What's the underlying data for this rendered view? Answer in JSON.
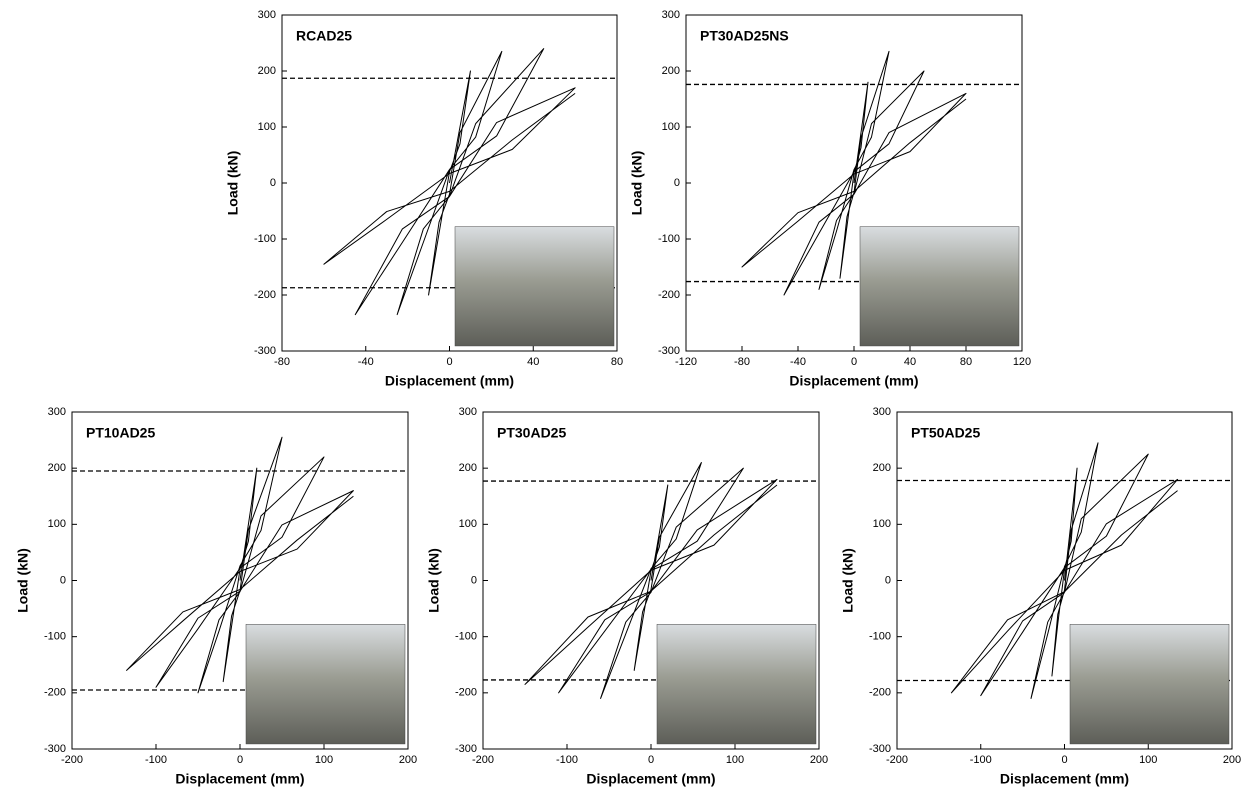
{
  "chart_data": [
    {
      "type": "line",
      "title": "RCAD25",
      "x_label": "Displacement (mm)",
      "y_label": "Load (kN)",
      "color": "#000000",
      "xlim": [
        -80,
        80
      ],
      "xticks": [
        -80,
        -40,
        0,
        40,
        80
      ],
      "ylim": [
        -300,
        300
      ],
      "yticks": [
        -300,
        -200,
        -100,
        0,
        100,
        200,
        300
      ],
      "reference_lines": [
        187,
        -187
      ],
      "x": [
        0,
        10,
        5,
        0,
        -5,
        -10,
        -5,
        0,
        5,
        25,
        12.5,
        0,
        -12.5,
        -25,
        -12.5,
        0,
        12.5,
        45,
        22.5,
        0,
        -22.5,
        -45,
        -22.5,
        0,
        22.5,
        60,
        30,
        0,
        -30,
        -60,
        -30,
        0,
        30,
        60
      ],
      "values": [
        0,
        200,
        70,
        20,
        -90,
        -200,
        -70,
        -20,
        90,
        235,
        82,
        24,
        -106,
        -235,
        -82,
        -24,
        106,
        240,
        84,
        24,
        -106,
        -235,
        -82,
        -24,
        108,
        170,
        60,
        17,
        -65,
        -145,
        -51,
        -15,
        77,
        160
      ]
    },
    {
      "type": "line",
      "title": "PT30AD25NS",
      "x_label": "Displacement (mm)",
      "y_label": "Load (kN)",
      "color": "#000000",
      "xlim": [
        -120,
        120
      ],
      "xticks": [
        -120,
        -80,
        -40,
        0,
        40,
        80,
        120
      ],
      "ylim": [
        -300,
        300
      ],
      "yticks": [
        -300,
        -200,
        -100,
        0,
        100,
        200,
        300
      ],
      "reference_lines": [
        176,
        -176
      ],
      "x": [
        0,
        10,
        5,
        0,
        -5,
        -10,
        -5,
        0,
        5,
        25,
        12.5,
        0,
        -12.5,
        -25,
        -12.5,
        0,
        12.5,
        50,
        25,
        0,
        -25,
        -50,
        -25,
        0,
        25,
        80,
        40,
        0,
        -40,
        -80,
        -40,
        0,
        40,
        80
      ],
      "values": [
        0,
        180,
        63,
        18,
        -77,
        -170,
        -60,
        -17,
        81,
        235,
        82,
        24,
        -86,
        -190,
        -67,
        -19,
        106,
        200,
        70,
        20,
        -90,
        -200,
        -70,
        -20,
        90,
        160,
        56,
        16,
        -68,
        -150,
        -53,
        -15,
        72,
        150
      ]
    },
    {
      "type": "line",
      "title": "PT10AD25",
      "x_label": "Displacement (mm)",
      "y_label": "Load (kN)",
      "color": "#000000",
      "xlim": [
        -200,
        200
      ],
      "xticks": [
        -200,
        -100,
        0,
        100,
        200
      ],
      "ylim": [
        -300,
        300
      ],
      "yticks": [
        -300,
        -200,
        -100,
        0,
        100,
        200,
        300
      ],
      "reference_lines": [
        195,
        -195
      ],
      "x": [
        0,
        20,
        10,
        0,
        -10,
        -20,
        -10,
        0,
        10,
        50,
        25,
        0,
        -25,
        -50,
        -25,
        0,
        25,
        100,
        50,
        0,
        -50,
        -100,
        -50,
        0,
        50,
        135,
        68,
        0,
        -68,
        -135,
        -68,
        0,
        68,
        135
      ],
      "values": [
        0,
        200,
        70,
        20,
        -81,
        -180,
        -63,
        -18,
        90,
        255,
        89,
        26,
        -90,
        -200,
        -70,
        -20,
        115,
        220,
        77,
        22,
        -86,
        -190,
        -67,
        -19,
        99,
        160,
        56,
        16,
        -72,
        -160,
        -56,
        -16,
        72,
        150
      ]
    },
    {
      "type": "line",
      "title": "PT30AD25",
      "x_label": "Displacement (mm)",
      "y_label": "Load (kN)",
      "color": "#000000",
      "xlim": [
        -200,
        200
      ],
      "xticks": [
        -200,
        -100,
        0,
        100,
        200
      ],
      "ylim": [
        -300,
        300
      ],
      "yticks": [
        -300,
        -200,
        -100,
        0,
        100,
        200,
        300
      ],
      "reference_lines": [
        177,
        -177
      ],
      "x": [
        0,
        20,
        10,
        0,
        -10,
        -20,
        -10,
        0,
        10,
        60,
        30,
        0,
        -30,
        -60,
        -30,
        0,
        30,
        110,
        55,
        0,
        -55,
        -110,
        -55,
        0,
        55,
        150,
        75,
        0,
        -75,
        -150,
        -75,
        0,
        75,
        150
      ],
      "values": [
        0,
        170,
        60,
        17,
        -72,
        -160,
        -56,
        -16,
        77,
        210,
        74,
        21,
        -95,
        -210,
        -74,
        -21,
        95,
        200,
        70,
        20,
        -90,
        -200,
        -70,
        -20,
        90,
        180,
        63,
        18,
        -83,
        -185,
        -65,
        -19,
        81,
        170
      ]
    },
    {
      "type": "line",
      "title": "PT50AD25",
      "x_label": "Displacement (mm)",
      "y_label": "Load (kN)",
      "color": "#000000",
      "xlim": [
        -200,
        200
      ],
      "xticks": [
        -200,
        -100,
        0,
        100,
        200
      ],
      "ylim": [
        -300,
        300
      ],
      "yticks": [
        -300,
        -200,
        -100,
        0,
        100,
        200,
        300
      ],
      "reference_lines": [
        178,
        -178
      ],
      "x": [
        0,
        15,
        8,
        0,
        -8,
        -15,
        -8,
        0,
        8,
        40,
        20,
        0,
        -20,
        -40,
        -20,
        0,
        20,
        100,
        50,
        0,
        -50,
        -100,
        -50,
        0,
        50,
        135,
        68,
        0,
        -68,
        -135,
        -68,
        0,
        68,
        135
      ],
      "values": [
        0,
        200,
        70,
        20,
        -77,
        -170,
        -60,
        -17,
        90,
        245,
        86,
        25,
        -95,
        -210,
        -74,
        -21,
        110,
        225,
        79,
        23,
        -92,
        -205,
        -72,
        -21,
        101,
        180,
        63,
        18,
        -90,
        -200,
        -70,
        -20,
        81,
        160
      ]
    }
  ]
}
